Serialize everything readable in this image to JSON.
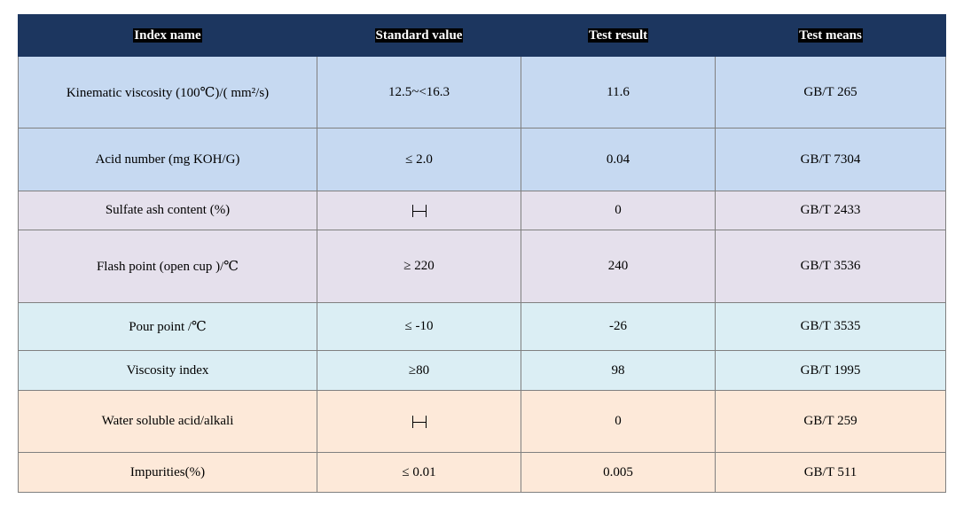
{
  "table": {
    "headers": [
      "Index name",
      "Standard value",
      "Test result",
      "Test means"
    ],
    "rows": [
      {
        "index": "Kinematic viscosity (100℃)/( mm²/s)",
        "standard": "12.5~<16.3",
        "result": "11.6",
        "means": "GB/T 265"
      },
      {
        "index": "Acid number (mg KOH/G)",
        "standard": "≤ 2.0",
        "result": "0.04",
        "means": "GB/T 7304"
      },
      {
        "index": "Sulfate ash content (%)",
        "standard": "—",
        "result": "0",
        "means": "GB/T 2433"
      },
      {
        "index": "Flash point (open cup )/℃",
        "standard": "≥ 220",
        "result": "240",
        "means": "GB/T 3536"
      },
      {
        "index": "Pour point /℃",
        "standard": "≤ -10",
        "result": "-26",
        "means": "GB/T 3535"
      },
      {
        "index": "Viscosity index",
        "standard": "≥80",
        "result": "98",
        "means": "GB/T 1995"
      },
      {
        "index": "Water soluble acid/alkali",
        "standard": "—",
        "result": "0",
        "means": "GB/T 259"
      },
      {
        "index": "Impurities(%)",
        "standard": "≤ 0.01",
        "result": "0.005",
        "means": "GB/T 511"
      }
    ]
  },
  "colors": {
    "header_bg": "#1c365f",
    "band_1": "#c6d9f1",
    "band_2": "#e5e0ec",
    "band_3": "#dbeef4",
    "band_4": "#fde9d9"
  }
}
